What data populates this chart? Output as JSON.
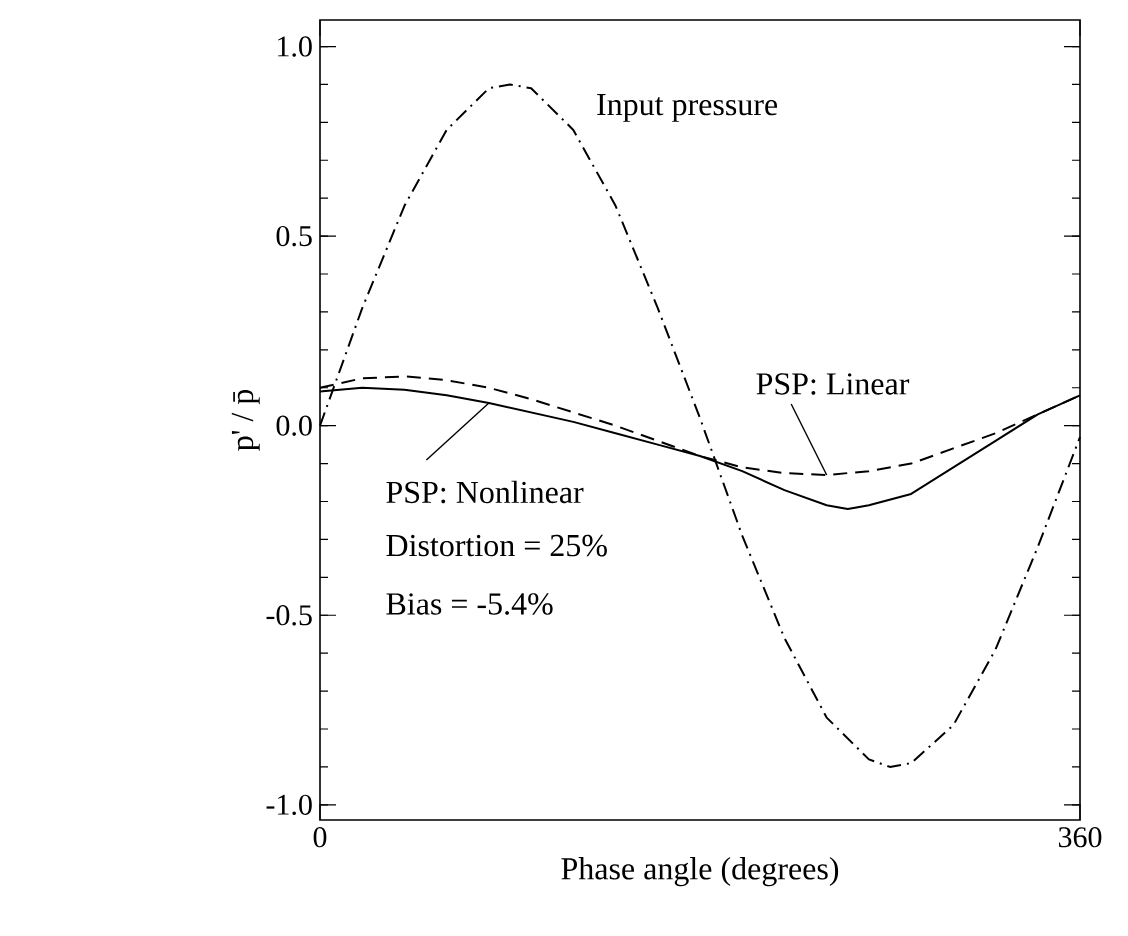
{
  "chart_data": {
    "type": "line",
    "xlabel": "Phase angle (degrees)",
    "ylabel": "p' / p̄",
    "xlim": [
      0,
      360
    ],
    "ylim": [
      -1.04,
      1.07
    ],
    "xticks": [
      0,
      360
    ],
    "yticks": [
      {
        "value": -1.0,
        "label": "-1.0"
      },
      {
        "value": -0.5,
        "label": "-0.5"
      },
      {
        "value": 0.0,
        "label": "0.0"
      },
      {
        "value": 0.5,
        "label": "0.5"
      },
      {
        "value": 1.0,
        "label": "1.0"
      }
    ],
    "grid": false,
    "marker": "none",
    "series": [
      {
        "name": "Input pressure",
        "color": "#000000",
        "line_style": "dashdot",
        "x": [
          0,
          20,
          40,
          60,
          80,
          90,
          100,
          120,
          140,
          160,
          180,
          200,
          220,
          240,
          260,
          270,
          280,
          300,
          320,
          340,
          360
        ],
        "values": [
          0,
          0.31,
          0.58,
          0.78,
          0.89,
          0.9,
          0.89,
          0.78,
          0.58,
          0.31,
          0.02,
          -0.29,
          -0.56,
          -0.77,
          -0.88,
          -0.9,
          -0.89,
          -0.79,
          -0.59,
          -0.32,
          -0.03
        ]
      },
      {
        "name": "PSP: Linear",
        "color": "#000000",
        "line_style": "dashed",
        "x": [
          0,
          20,
          40,
          60,
          80,
          100,
          120,
          140,
          160,
          180,
          200,
          220,
          240,
          260,
          280,
          300,
          320,
          340,
          360
        ],
        "values": [
          0.1,
          0.125,
          0.13,
          0.12,
          0.1,
          0.07,
          0.035,
          0.0,
          -0.04,
          -0.08,
          -0.11,
          -0.125,
          -0.13,
          -0.12,
          -0.1,
          -0.06,
          -0.02,
          0.03,
          0.08
        ]
      },
      {
        "name": "PSP: Nonlinear",
        "color": "#000000",
        "line_style": "solid",
        "x": [
          0,
          20,
          40,
          60,
          80,
          100,
          120,
          140,
          160,
          180,
          200,
          220,
          240,
          250,
          260,
          280,
          300,
          320,
          340,
          360
        ],
        "values": [
          0.09,
          0.1,
          0.095,
          0.08,
          0.06,
          0.035,
          0.01,
          -0.02,
          -0.05,
          -0.08,
          -0.12,
          -0.17,
          -0.21,
          -0.22,
          -0.21,
          -0.18,
          -0.11,
          -0.04,
          0.03,
          0.08
        ]
      }
    ],
    "annotations": [
      "Distortion = 25%",
      "Bias = -5.4%"
    ]
  }
}
